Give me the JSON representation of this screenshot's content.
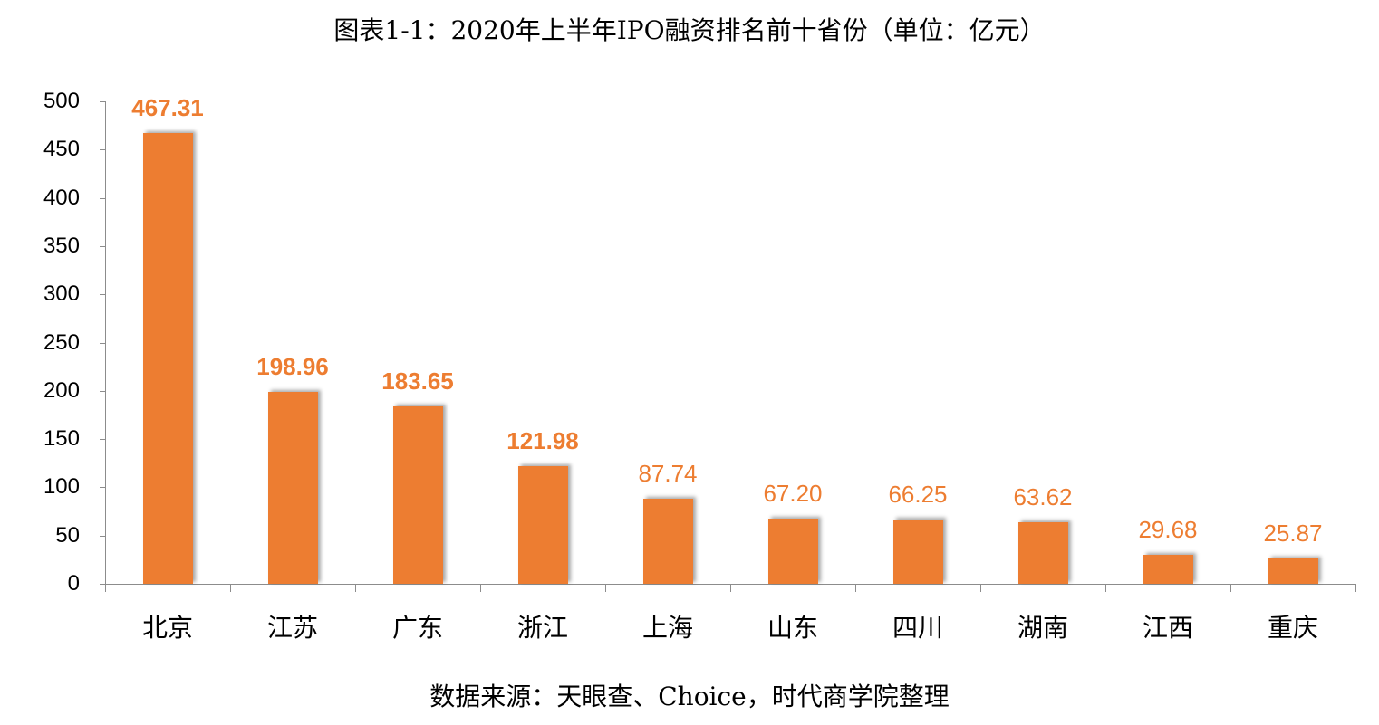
{
  "title": "图表1-1：2020年上半年IPO融资排名前十省份（单位：亿元）",
  "source": "数据来源：天眼查、Choice，时代商学院整理",
  "colors": {
    "bar": "#ED7D31",
    "label": "#ED7D31",
    "axis": "#8c8c8c"
  },
  "chart_data": {
    "type": "bar",
    "title": "图表1-1：2020年上半年IPO融资排名前十省份（单位：亿元）",
    "xlabel": "",
    "ylabel": "",
    "categories": [
      "北京",
      "江苏",
      "广东",
      "浙江",
      "上海",
      "山东",
      "四川",
      "湖南",
      "江西",
      "重庆"
    ],
    "values": [
      467.31,
      198.96,
      183.65,
      121.98,
      87.74,
      67.2,
      66.25,
      63.62,
      29.68,
      25.87
    ],
    "value_labels": [
      "467.31",
      "198.96",
      "183.65",
      "121.98",
      "87.74",
      "67.20",
      "66.25",
      "63.62",
      "29.68",
      "25.87"
    ],
    "ylim": [
      0,
      500
    ],
    "yticks": [
      "0",
      "50",
      "100",
      "150",
      "200",
      "250",
      "300",
      "350",
      "400",
      "450",
      "500"
    ],
    "grid": false,
    "legend": null,
    "annotation": "数据来源：天眼查、Choice，时代商学院整理"
  }
}
